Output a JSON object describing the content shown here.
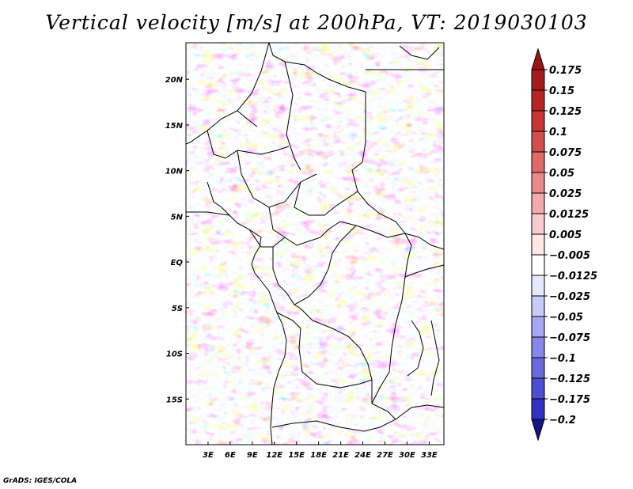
{
  "title": "Vertical velocity [m/s] at 200hPa, VT: 2019030103",
  "credit": "GrADS: IGES/COLA",
  "map": {
    "variable": "Vertical velocity",
    "units": "m/s",
    "level": "200hPa",
    "valid_time": "2019030103",
    "lon_range": [
      0,
      35
    ],
    "lat_range": [
      -20,
      24
    ],
    "lon_ticks": [
      {
        "value": 3,
        "label": "3E"
      },
      {
        "value": 6,
        "label": "6E"
      },
      {
        "value": 9,
        "label": "9E"
      },
      {
        "value": 12,
        "label": "12E"
      },
      {
        "value": 15,
        "label": "15E"
      },
      {
        "value": 18,
        "label": "18E"
      },
      {
        "value": 21,
        "label": "21E"
      },
      {
        "value": 24,
        "label": "24E"
      },
      {
        "value": 27,
        "label": "27E"
      },
      {
        "value": 30,
        "label": "30E"
      },
      {
        "value": 33,
        "label": "33E"
      }
    ],
    "lat_ticks": [
      {
        "value": 20,
        "label": "20N"
      },
      {
        "value": 15,
        "label": "15N"
      },
      {
        "value": 10,
        "label": "10N"
      },
      {
        "value": 5,
        "label": "5N"
      },
      {
        "value": 0,
        "label": "EQ"
      },
      {
        "value": -5,
        "label": "5S"
      },
      {
        "value": -10,
        "label": "10S"
      },
      {
        "value": -15,
        "label": "15S"
      }
    ]
  },
  "colorbar": {
    "orientation": "vertical",
    "placement": "right",
    "levels": [
      {
        "label": "0.175",
        "color": "#a51a1a"
      },
      {
        "label": "0.15",
        "color": "#b82424"
      },
      {
        "label": "0.125",
        "color": "#c83636"
      },
      {
        "label": "0.1",
        "color": "#d44e4e"
      },
      {
        "label": "0.075",
        "color": "#de6a6a"
      },
      {
        "label": "0.05",
        "color": "#e88a8a"
      },
      {
        "label": "0.025",
        "color": "#f2aaaa"
      },
      {
        "label": "0.0125",
        "color": "#f8cccc"
      },
      {
        "label": "0.005",
        "color": "#fde8e8"
      },
      {
        "label": "-0.005",
        "color": "#ffffff"
      },
      {
        "label": "-0.0125",
        "color": "#e8e8fd"
      },
      {
        "label": "-0.025",
        "color": "#cacaf8"
      },
      {
        "label": "-0.05",
        "color": "#a8a8f2"
      },
      {
        "label": "-0.075",
        "color": "#8888ea"
      },
      {
        "label": "-0.1",
        "color": "#6a6ade"
      },
      {
        "label": "-0.125",
        "color": "#4e4ed2"
      },
      {
        "label": "-0.175",
        "color": "#3232c2"
      },
      {
        "label": "-0.2",
        "color": "#1e1eaa"
      }
    ],
    "top_arrow_color": "#9a1414",
    "bottom_arrow_color": "#14148c"
  }
}
